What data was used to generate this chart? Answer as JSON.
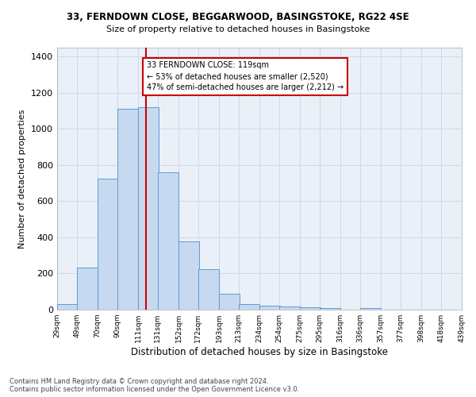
{
  "title_line1": "33, FERNDOWN CLOSE, BEGGARWOOD, BASINGSTOKE, RG22 4SE",
  "title_line2": "Size of property relative to detached houses in Basingstoke",
  "xlabel": "Distribution of detached houses by size in Basingstoke",
  "ylabel": "Number of detached properties",
  "footnote1": "Contains HM Land Registry data © Crown copyright and database right 2024.",
  "footnote2": "Contains public sector information licensed under the Open Government Licence v3.0.",
  "bar_left_edges": [
    29,
    49,
    70,
    90,
    111,
    131,
    152,
    172,
    193,
    213,
    234,
    254,
    275,
    295,
    316,
    336,
    357,
    377,
    398,
    418
  ],
  "bar_heights": [
    32,
    234,
    727,
    1112,
    1120,
    762,
    378,
    222,
    89,
    29,
    22,
    19,
    13,
    8,
    0,
    10,
    0,
    0,
    0,
    0
  ],
  "bin_width": 21,
  "bar_color": "#c6d9f0",
  "bar_edge_color": "#5b9bd5",
  "grid_color": "#d0d8e8",
  "bg_color": "#eaf0f8",
  "vline_x": 119,
  "vline_color": "#cc0000",
  "annotation_text": "33 FERNDOWN CLOSE: 119sqm\n← 53% of detached houses are smaller (2,520)\n47% of semi-detached houses are larger (2,212) →",
  "annotation_box_color": "#cc0000",
  "ylim": [
    0,
    1450
  ],
  "yticks": [
    0,
    200,
    400,
    600,
    800,
    1000,
    1200,
    1400
  ],
  "tick_labels": [
    "29sqm",
    "49sqm",
    "70sqm",
    "90sqm",
    "111sqm",
    "131sqm",
    "152sqm",
    "172sqm",
    "193sqm",
    "213sqm",
    "234sqm",
    "254sqm",
    "275sqm",
    "295sqm",
    "316sqm",
    "336sqm",
    "357sqm",
    "377sqm",
    "398sqm",
    "418sqm",
    "439sqm"
  ]
}
